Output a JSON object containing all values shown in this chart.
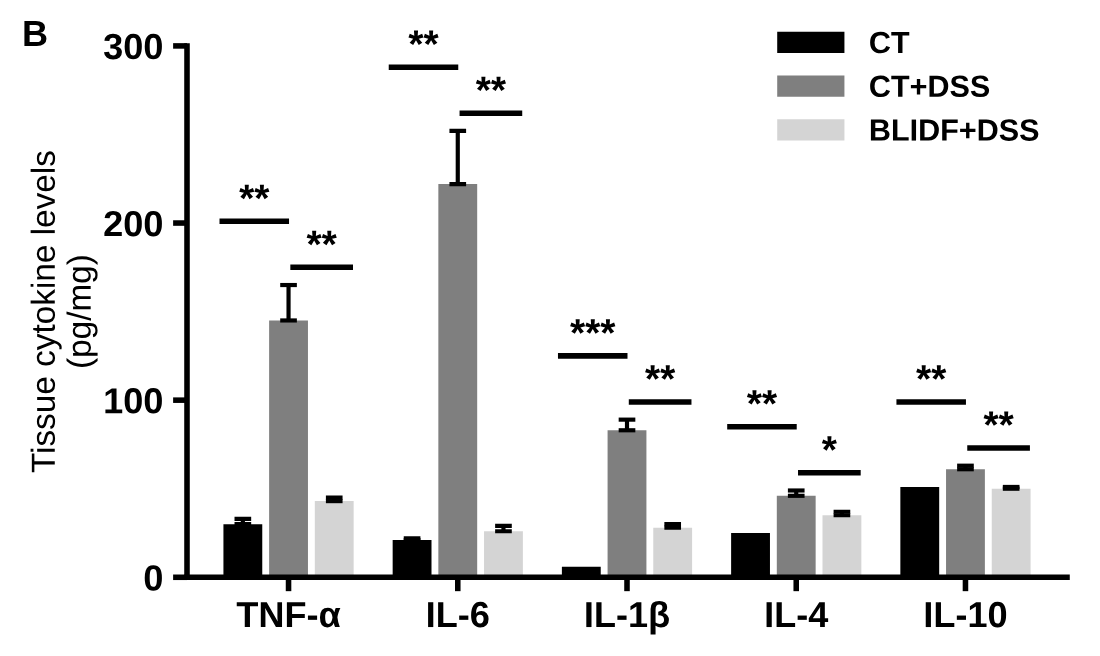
{
  "chart_data": {
    "type": "bar",
    "title": "B",
    "ylabel": "Tissue cytokine levels\n(pg/mg)",
    "categories": [
      "TNF-α",
      "IL-6",
      "IL-1β",
      "IL-4",
      "IL-10"
    ],
    "series": [
      {
        "name": "CT",
        "color": "#000000",
        "values": [
          30,
          21,
          6,
          25,
          51
        ],
        "errors": [
          3,
          1,
          null,
          null,
          null
        ]
      },
      {
        "name": "CT+DSS",
        "color": "#7f7f7f",
        "values": [
          145,
          222,
          83,
          46,
          61
        ],
        "errors": [
          20,
          30,
          6,
          3,
          2
        ]
      },
      {
        "name": "BLIDF+DSS",
        "color": "#d4d4d4",
        "values": [
          43,
          26,
          28,
          35,
          50
        ],
        "errors": [
          2,
          3,
          2,
          2,
          1
        ]
      }
    ],
    "annotations": [
      "**",
      "**",
      "**",
      "**",
      "***",
      "**",
      "**",
      "*",
      "**",
      "**"
    ],
    "ylim": [
      0,
      300
    ],
    "yticks": [
      0,
      100,
      200,
      300
    ],
    "grid": false,
    "legend": "top right"
  }
}
